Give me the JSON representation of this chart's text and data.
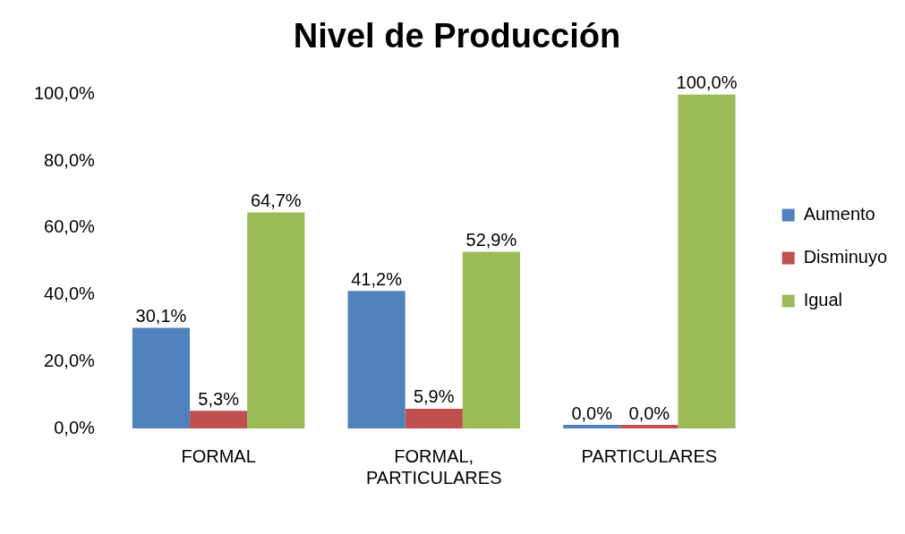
{
  "chart_data": {
    "type": "bar",
    "title": "Nivel de Producción",
    "categories": [
      "FORMAL",
      "FORMAL, PARTICULARES",
      "PARTICULARES"
    ],
    "series": [
      {
        "name": "Aumento",
        "color": "#4f81bd",
        "values": [
          30.1,
          41.2,
          0.0
        ],
        "value_labels": [
          "30,1%",
          "41,2%",
          "0,0%"
        ]
      },
      {
        "name": "Disminuyo",
        "color": "#c0504d",
        "values": [
          5.3,
          5.9,
          0.0
        ],
        "value_labels": [
          "5,3%",
          "5,9%",
          "0,0%"
        ]
      },
      {
        "name": "Igual",
        "color": "#9bbb59",
        "values": [
          64.7,
          52.9,
          100.0
        ],
        "value_labels": [
          "64,7%",
          "52,9%",
          "100,0%"
        ]
      }
    ],
    "ylim": [
      0,
      100
    ],
    "yticks": [
      {
        "value": 0,
        "label": "0,0%"
      },
      {
        "value": 20,
        "label": "20,0%"
      },
      {
        "value": 40,
        "label": "40,0%"
      },
      {
        "value": 60,
        "label": "60,0%"
      },
      {
        "value": 80,
        "label": "80,0%"
      },
      {
        "value": 100,
        "label": "100,0%"
      }
    ],
    "grid": false,
    "legend": "right"
  }
}
